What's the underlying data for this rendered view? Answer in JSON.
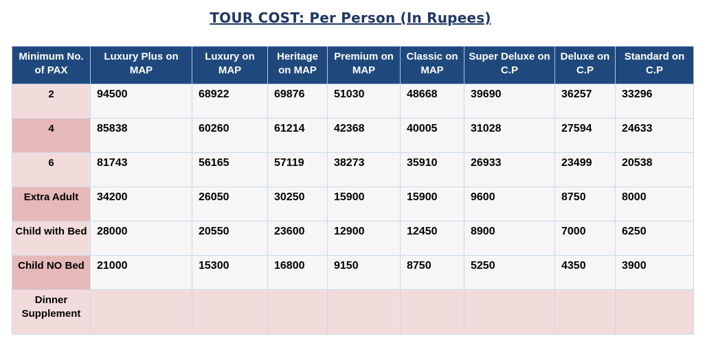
{
  "title": "TOUR COST: Per Person (In Rupees)",
  "headers": [
    "Minimum No. of PAX",
    "Luxury Plus on MAP",
    "Luxury on MAP",
    "Heritage on MAP",
    "Premium on MAP",
    "Classic on MAP",
    "Super Deluxe on C.P",
    "Deluxe on C.P",
    "Standard on C.P"
  ],
  "rows": [
    {
      "label": "2",
      "values": [
        "94500",
        "68922",
        "69876",
        "51030",
        "48668",
        "39690",
        "36257",
        "33296"
      ]
    },
    {
      "label": "4",
      "values": [
        "85838",
        "60260",
        "61214",
        "42368",
        "40005",
        "31028",
        "27594",
        "24633"
      ]
    },
    {
      "label": "6",
      "values": [
        "81743",
        "56165",
        "57119",
        "38273",
        "35910",
        "26933",
        "23499",
        "20538"
      ]
    },
    {
      "label": "Extra Adult",
      "values": [
        "34200",
        "26050",
        "30250",
        "15900",
        "15900",
        "9600",
        "8750",
        "8000"
      ]
    },
    {
      "label": "Child with Bed",
      "values": [
        "28000",
        "20550",
        "23600",
        "12900",
        "12450",
        "8900",
        "7000",
        "6250"
      ]
    },
    {
      "label": "Child NO Bed",
      "values": [
        "21000",
        "15300",
        "16800",
        "9150",
        "8750",
        "5250",
        "4350",
        "3900"
      ]
    },
    {
      "label": "Dinner Supplement",
      "values": [
        "",
        "",
        "",
        "",
        "",
        "",
        "",
        ""
      ]
    }
  ],
  "colors": {
    "header_bg": "#1f497d",
    "title_text": "#1f3864",
    "row_label_light": "#f2dcdb",
    "row_label_dark": "#e6b9b8",
    "cell_bg": "#f6f6f7"
  }
}
